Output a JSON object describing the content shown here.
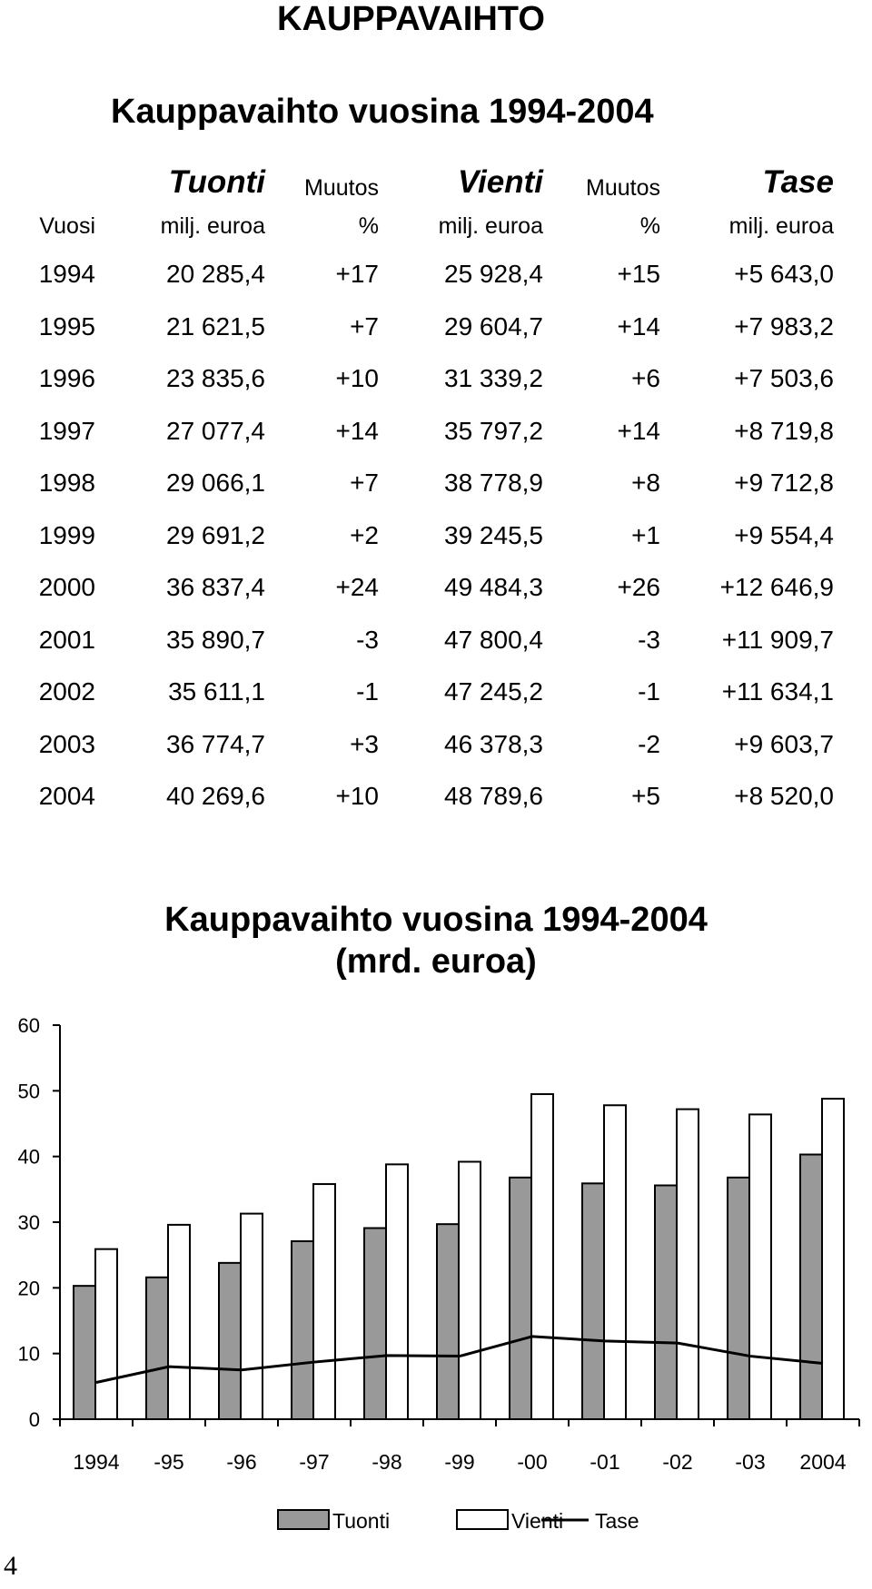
{
  "page_title": "KAUPPAVAIHTO",
  "table": {
    "title": "Kauppavaihto vuosina 1994-2004",
    "headers_top": [
      "",
      "Tuonti",
      "Muutos",
      "Vienti",
      "Muutos",
      "Tase"
    ],
    "headers_bottom": [
      "Vuosi",
      "milj. euroa",
      "%",
      "milj. euroa",
      "%",
      "milj. euroa"
    ],
    "rows": [
      [
        "1994",
        "20 285,4",
        "+17",
        "25 928,4",
        "+15",
        "+5 643,0"
      ],
      [
        "1995",
        "21 621,5",
        "+7",
        "29 604,7",
        "+14",
        "+7 983,2"
      ],
      [
        "1996",
        "23 835,6",
        "+10",
        "31 339,2",
        "+6",
        "+7 503,6"
      ],
      [
        "1997",
        "27 077,4",
        "+14",
        "35 797,2",
        "+14",
        "+8 719,8"
      ],
      [
        "1998",
        "29 066,1",
        "+7",
        "38 778,9",
        "+8",
        "+9 712,8"
      ],
      [
        "1999",
        "29 691,2",
        "+2",
        "39 245,5",
        "+1",
        "+9 554,4"
      ],
      [
        "2000",
        "36 837,4",
        "+24",
        "49 484,3",
        "+26",
        "+12 646,9"
      ],
      [
        "2001",
        "35 890,7",
        "-3",
        "47 800,4",
        "-3",
        "+11 909,7"
      ],
      [
        "2002",
        "35 611,1",
        "-1",
        "47 245,2",
        "-1",
        "+11 634,1"
      ],
      [
        "2003",
        "36 774,7",
        "+3",
        "46 378,3",
        "-2",
        "+9 603,7"
      ],
      [
        "2004",
        "40 269,6",
        "+10",
        "48 789,6",
        "+5",
        "+8 520,0"
      ]
    ]
  },
  "chart_data": {
    "type": "bar",
    "title": "Kauppavaihto vuosina 1994-2004",
    "subtitle": "(mrd. euroa)",
    "categories": [
      "1994",
      "-95",
      "-96",
      "-97",
      "-98",
      "-99",
      "-00",
      "-01",
      "-02",
      "-03",
      "2004"
    ],
    "ylim": [
      0,
      60
    ],
    "yticks": [
      0,
      10,
      20,
      30,
      40,
      50,
      60
    ],
    "grid": false,
    "legend": "bottom",
    "series": [
      {
        "name": "Tuonti",
        "kind": "bar",
        "color": "#999999",
        "values": [
          20.3,
          21.6,
          23.8,
          27.1,
          29.1,
          29.7,
          36.8,
          35.9,
          35.6,
          36.8,
          40.3
        ]
      },
      {
        "name": "Vienti",
        "kind": "bar",
        "color": "#ffffff",
        "values": [
          25.9,
          29.6,
          31.3,
          35.8,
          38.8,
          39.2,
          49.5,
          47.8,
          47.2,
          46.4,
          48.8
        ]
      },
      {
        "name": "Tase",
        "kind": "line",
        "color": "#000000",
        "values": [
          5.6,
          8.0,
          7.5,
          8.7,
          9.7,
          9.6,
          12.6,
          11.9,
          11.6,
          9.6,
          8.5
        ]
      }
    ]
  },
  "page_number": "4"
}
